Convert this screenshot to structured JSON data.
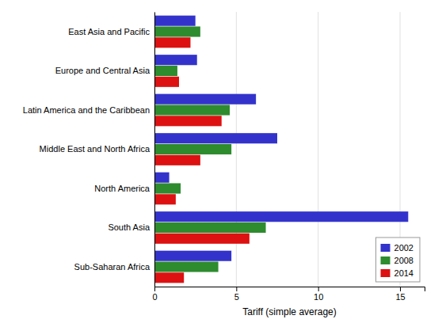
{
  "chart_data": {
    "type": "bar",
    "orientation": "horizontal",
    "categories": [
      "East Asia and Pacific",
      "Europe and Central Asia",
      "Latin America and the Caribbean",
      "Middle East and North Africa",
      "North America",
      "South Asia",
      "Sub-Saharan Africa"
    ],
    "series": [
      {
        "name": "2002",
        "color": "#3333cc",
        "values": [
          2.5,
          2.6,
          6.2,
          7.5,
          0.9,
          15.5,
          4.7
        ]
      },
      {
        "name": "2008",
        "color": "#2e8b2e",
        "values": [
          2.8,
          1.4,
          4.6,
          4.7,
          1.6,
          6.8,
          3.9
        ]
      },
      {
        "name": "2014",
        "color": "#dd1111",
        "values": [
          2.2,
          1.5,
          4.1,
          2.8,
          1.3,
          5.8,
          1.8
        ]
      }
    ],
    "xlabel": "Tariff (simple average)",
    "xlim": [
      0,
      16.5
    ],
    "xticks": [
      0,
      5,
      10,
      15
    ],
    "grid": true,
    "legend": "lower right"
  }
}
